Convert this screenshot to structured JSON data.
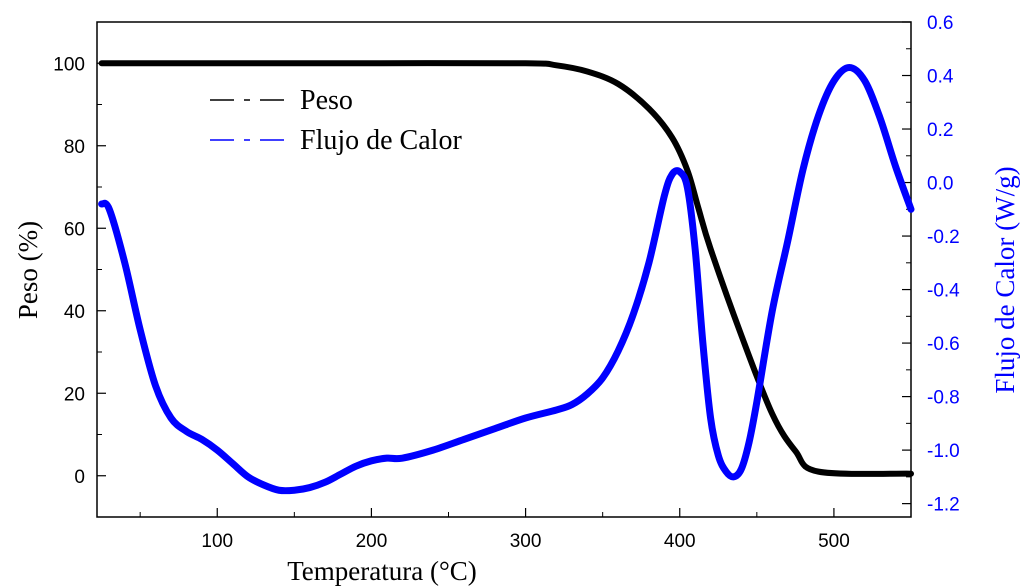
{
  "chart_data": {
    "type": "line",
    "xlabel": "Temperatura (°C)",
    "xlim": [
      22,
      550
    ],
    "xticks": [
      100,
      200,
      300,
      400,
      500
    ],
    "y_left": {
      "label": "Peso (%)",
      "lim": [
        -10,
        110
      ],
      "ticks": [
        0,
        20,
        40,
        60,
        80,
        100
      ]
    },
    "y_right": {
      "label": "Flujo de Calor (W/g)",
      "lim": [
        -1.25,
        0.6
      ],
      "ticks": [
        -1.2,
        -1.0,
        -0.8,
        -0.6,
        -0.4,
        -0.2,
        0.0,
        0.2,
        0.4,
        0.6
      ],
      "tick_labels": [
        "-1.2",
        "-1.0",
        "-0.8",
        "-0.6",
        "-0.4",
        "-0.2",
        "0.0",
        "0.2",
        "0.4",
        "0.6"
      ],
      "color": "#0000ff"
    },
    "legend_position": "top-left",
    "series": [
      {
        "name": "Peso",
        "axis": "left",
        "color": "#000000",
        "x": [
          25,
          100,
          200,
          300,
          320,
          340,
          360,
          380,
          395,
          405,
          412,
          420,
          440,
          460,
          475,
          490,
          550
        ],
        "values": [
          100,
          100,
          100,
          100,
          99.5,
          98,
          95,
          89,
          82,
          74,
          65,
          55,
          34,
          15,
          6,
          1,
          0.5
        ]
      },
      {
        "name": "Flujo de Calor",
        "axis": "right",
        "color": "#0000ff",
        "x": [
          25,
          30,
          40,
          50,
          60,
          70,
          80,
          90,
          100,
          110,
          120,
          130,
          140,
          150,
          160,
          170,
          180,
          190,
          200,
          210,
          220,
          240,
          260,
          280,
          300,
          320,
          330,
          340,
          350,
          360,
          370,
          380,
          390,
          395,
          400,
          405,
          410,
          415,
          420,
          425,
          430,
          435,
          440,
          445,
          450,
          460,
          470,
          480,
          490,
          500,
          510,
          520,
          530,
          540,
          550
        ],
        "values": [
          -0.08,
          -0.1,
          -0.3,
          -0.55,
          -0.76,
          -0.88,
          -0.93,
          -0.96,
          -1.0,
          -1.05,
          -1.1,
          -1.13,
          -1.15,
          -1.15,
          -1.14,
          -1.12,
          -1.09,
          -1.06,
          -1.04,
          -1.03,
          -1.03,
          -1.0,
          -0.96,
          -0.92,
          -0.88,
          -0.85,
          -0.83,
          -0.79,
          -0.73,
          -0.63,
          -0.49,
          -0.3,
          -0.05,
          0.03,
          0.04,
          -0.02,
          -0.25,
          -0.6,
          -0.88,
          -1.02,
          -1.08,
          -1.1,
          -1.07,
          -0.97,
          -0.82,
          -0.48,
          -0.22,
          0.05,
          0.25,
          0.38,
          0.43,
          0.38,
          0.24,
          0.06,
          -0.1
        ]
      }
    ]
  }
}
